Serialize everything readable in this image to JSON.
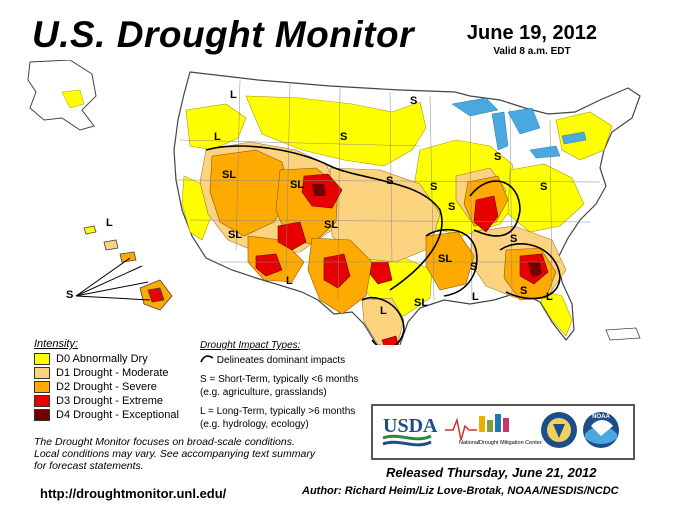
{
  "header": {
    "title": "U.S. Drought Monitor",
    "date": "June 19, 2012",
    "valid": "Valid 8 a.m. EDT"
  },
  "legend": {
    "heading": "Intensity:",
    "items": [
      {
        "label": "D0 Abnormally Dry",
        "color": "#ffff00"
      },
      {
        "label": "D1 Drought - Moderate",
        "color": "#fcd37f"
      },
      {
        "label": "D2 Drought - Severe",
        "color": "#ffaa00"
      },
      {
        "label": "D3 Drought - Extreme",
        "color": "#e60000"
      },
      {
        "label": "D4 Drought - Exceptional",
        "color": "#730000"
      }
    ]
  },
  "impact": {
    "heading": "Drought Impact Types:",
    "delineates": "Delineates dominant impacts",
    "short_1": "S = Short-Term, typically <6 months",
    "short_2": "(e.g. agriculture, grasslands)",
    "long_1": "L = Long-Term, typically >6 months",
    "long_2": "(e.g. hydrology, ecology)"
  },
  "notes": {
    "line1": "The Drought Monitor focuses on broad-scale conditions.",
    "line2": "Local conditions may vary. See accompanying text summary",
    "line3": "for forecast statements."
  },
  "footer": {
    "url": "http://droughtmonitor.unl.edu/",
    "released": "Released Thursday, June 21, 2012",
    "author": "Author: Richard Heim/Liz Love-Brotak, NOAA/NESDIS/NCDC"
  },
  "logos": {
    "usda": "USDA",
    "ndmc_line1": "National",
    "ndmc_line2": "Drought Mitigation Center",
    "noaa": "NOAA"
  },
  "map_labels": {
    "s": "S",
    "l": "L",
    "sl": "SL"
  }
}
